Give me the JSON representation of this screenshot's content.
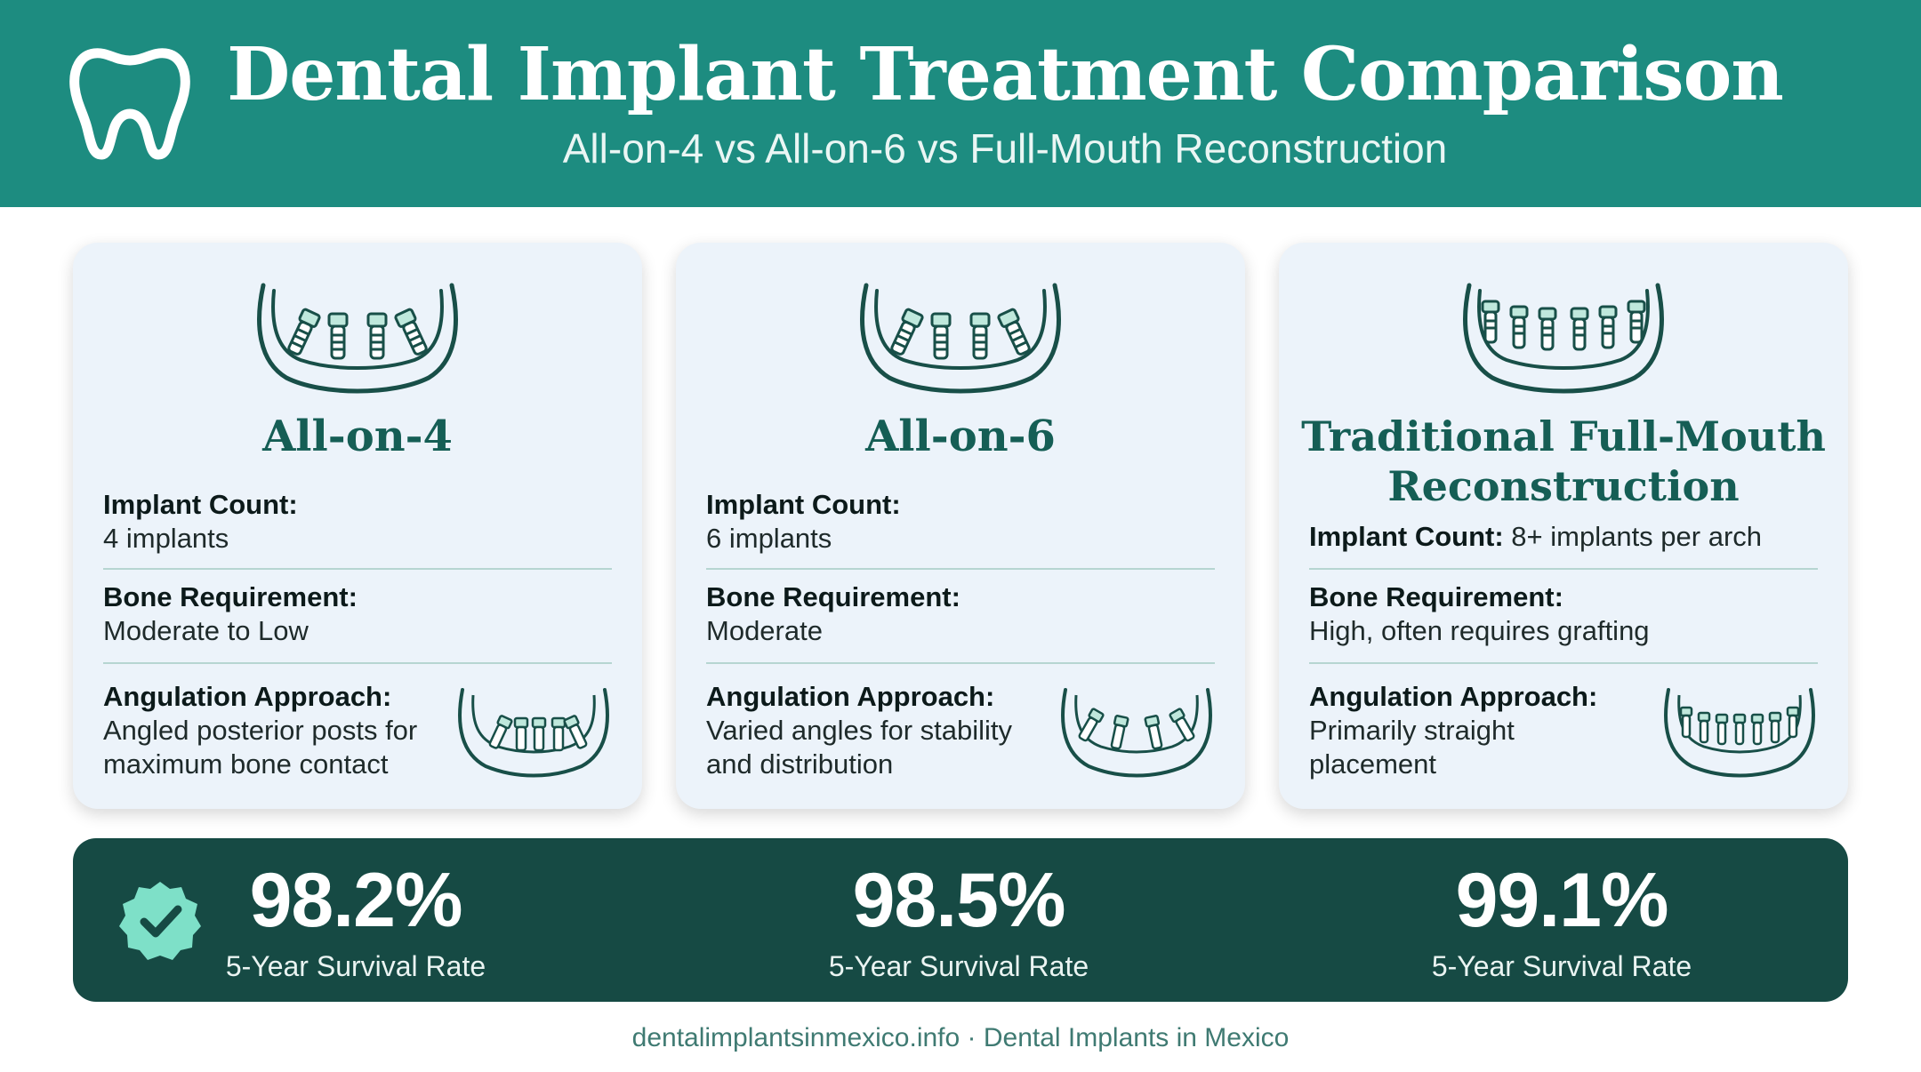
{
  "header": {
    "icon": "tooth-icon",
    "title": "Dental Implant Treatment Comparison",
    "subtitle": "All-on-4 vs All-on-6 vs Full-Mouth Reconstruction",
    "background_color": "#1d8c80"
  },
  "cards": [
    {
      "title": "All-on-4",
      "icon": "jaw-with-4-angled-implants-icon",
      "implant_count_label": "Implant Count:",
      "implant_count_value": "4 implants",
      "bone_label": "Bone Requirement:",
      "bone_value": "Moderate to Low",
      "angulation_label": "Angulation Approach:",
      "angulation_value": "Angled posterior posts for maximum bone contact"
    },
    {
      "title": "All-on-6",
      "icon": "jaw-with-angled-implants-icon",
      "implant_count_label": "Implant Count:",
      "implant_count_value": "6 implants",
      "bone_label": "Bone Requirement:",
      "bone_value": "Moderate",
      "angulation_label": "Angulation Approach:",
      "angulation_value": "Varied angles for stability and distribution"
    },
    {
      "title": "Traditional Full-Mouth Reconstruction",
      "icon": "jaw-with-straight-implants-icon",
      "implant_count_label": "Implant Count:",
      "implant_count_value": "8+ implants per arch",
      "bone_label": "Bone Requirement:",
      "bone_value": "High, often requires grafting",
      "angulation_label": "Angulation Approach:",
      "angulation_value": "Primarily straight placement"
    }
  ],
  "stats": {
    "badge_icon": "check-badge-icon",
    "items": [
      {
        "value": "98.2%",
        "label": "5-Year Survival Rate"
      },
      {
        "value": "98.5%",
        "label": "5-Year Survival Rate"
      },
      {
        "value": "99.1%",
        "label": "5-Year Survival Rate"
      }
    ],
    "background_color": "#164a44",
    "accent_color": "#7ee0c8"
  },
  "footer": {
    "text": "dentalimplantsinmexico.info · Dental Implants in Mexico"
  }
}
